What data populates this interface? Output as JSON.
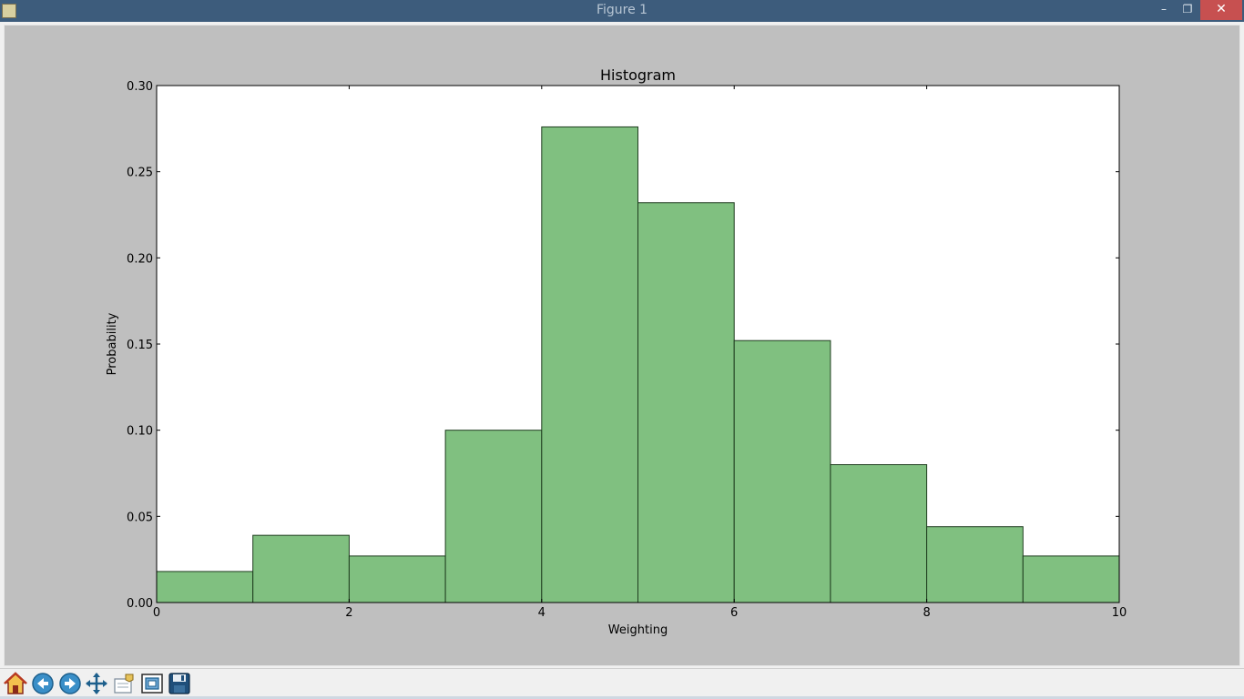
{
  "window": {
    "title": "Figure 1",
    "buttons": [
      "minimize",
      "restore",
      "close"
    ],
    "close_color": "#c75050",
    "titlebar_color": "#3d5c7c"
  },
  "toolbar": {
    "items": [
      {
        "name": "home-icon"
      },
      {
        "name": "back-icon"
      },
      {
        "name": "forward-icon"
      },
      {
        "name": "pan-icon"
      },
      {
        "name": "configure-subplots-icon"
      },
      {
        "name": "zoom-rect-icon"
      },
      {
        "name": "save-icon"
      }
    ]
  },
  "chart_data": {
    "type": "bar",
    "title": "Histogram",
    "xlabel": "Weighting",
    "ylabel": "Probability",
    "bin_edges": [
      0,
      1,
      2,
      3,
      4,
      5,
      6,
      7,
      8,
      9,
      10
    ],
    "values": [
      0.018,
      0.039,
      0.027,
      0.1,
      0.276,
      0.232,
      0.152,
      0.08,
      0.044,
      0.027
    ],
    "xlim": [
      0,
      10
    ],
    "ylim": [
      0,
      0.3
    ],
    "xticks": [
      "0",
      "2",
      "4",
      "6",
      "8",
      "10"
    ],
    "yticks": [
      "0.00",
      "0.05",
      "0.10",
      "0.15",
      "0.20",
      "0.25",
      "0.30"
    ],
    "bar_color": "#80c080",
    "edge_color": "#1f3d1f",
    "grid": false
  }
}
